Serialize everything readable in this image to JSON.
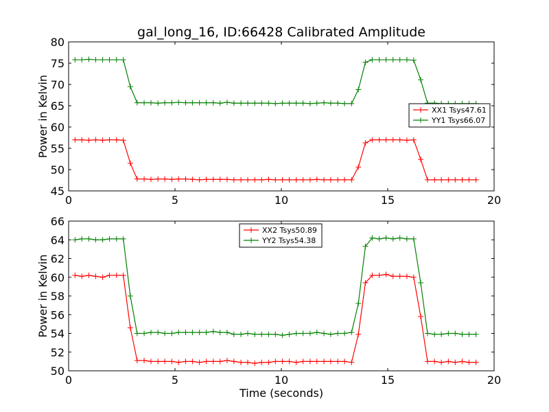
{
  "title": "gal_long_16, ID:66428 Calibrated Amplitude",
  "colors": {
    "xx": "#ff0000",
    "yy": "#008000"
  },
  "chart_data": [
    {
      "type": "line",
      "ylabel": "Power in Kelvin",
      "xlabel": "",
      "xlim": [
        0,
        20
      ],
      "ylim": [
        45,
        80
      ],
      "xticks": [
        0,
        5,
        10,
        15,
        20
      ],
      "yticks": [
        45,
        50,
        55,
        60,
        65,
        70,
        75,
        80
      ],
      "grid": false,
      "legend_position": "center-right",
      "x": [
        0.3,
        0.62,
        0.95,
        1.27,
        1.6,
        1.92,
        2.25,
        2.57,
        2.9,
        3.22,
        3.55,
        3.87,
        4.2,
        4.52,
        4.85,
        5.17,
        5.5,
        5.82,
        6.15,
        6.47,
        6.8,
        7.12,
        7.45,
        7.77,
        8.1,
        8.42,
        8.75,
        9.07,
        9.4,
        9.72,
        10.05,
        10.37,
        10.7,
        11.02,
        11.35,
        11.67,
        12.0,
        12.32,
        12.65,
        12.97,
        13.3,
        13.62,
        13.95,
        14.27,
        14.6,
        14.92,
        15.25,
        15.57,
        15.9,
        16.22,
        16.55,
        16.87,
        17.2,
        17.52,
        17.85,
        18.17,
        18.5,
        18.82,
        19.15
      ],
      "series": [
        {
          "name": "XX1 Tsys47.61",
          "color": "#ff0000",
          "values": [
            57.0,
            57.0,
            56.9,
            57.0,
            56.9,
            57.0,
            57.0,
            56.9,
            51.5,
            47.8,
            47.8,
            47.7,
            47.8,
            47.8,
            47.7,
            47.8,
            47.8,
            47.7,
            47.6,
            47.7,
            47.7,
            47.7,
            47.7,
            47.6,
            47.6,
            47.6,
            47.6,
            47.6,
            47.7,
            47.6,
            47.6,
            47.6,
            47.6,
            47.6,
            47.6,
            47.7,
            47.6,
            47.6,
            47.6,
            47.6,
            47.6,
            50.6,
            56.3,
            57.0,
            57.0,
            57.0,
            57.0,
            57.0,
            56.9,
            57.0,
            52.4,
            47.6,
            47.6,
            47.6,
            47.6,
            47.6,
            47.6,
            47.6,
            47.6
          ]
        },
        {
          "name": "YY1 Tsys66.07",
          "color": "#008000",
          "values": [
            75.8,
            75.8,
            75.9,
            75.8,
            75.8,
            75.8,
            75.8,
            75.8,
            69.5,
            65.7,
            65.7,
            65.7,
            65.6,
            65.7,
            65.7,
            65.8,
            65.7,
            65.7,
            65.7,
            65.7,
            65.7,
            65.6,
            65.8,
            65.6,
            65.6,
            65.6,
            65.6,
            65.6,
            65.6,
            65.5,
            65.6,
            65.6,
            65.6,
            65.6,
            65.5,
            65.6,
            65.7,
            65.6,
            65.6,
            65.5,
            65.5,
            68.8,
            75.2,
            75.8,
            75.8,
            75.8,
            75.8,
            75.8,
            75.8,
            75.7,
            71.1,
            65.6,
            65.6,
            65.5,
            65.5,
            65.5,
            65.5,
            65.5,
            65.5
          ]
        }
      ]
    },
    {
      "type": "line",
      "ylabel": "Power in Kelvin",
      "xlabel": "Time (seconds)",
      "xlim": [
        0,
        20
      ],
      "ylim": [
        50,
        66
      ],
      "xticks": [
        0,
        5,
        10,
        15,
        20
      ],
      "yticks": [
        50,
        52,
        54,
        56,
        58,
        60,
        62,
        64,
        66
      ],
      "grid": false,
      "legend_position": "upper-center",
      "x": [
        0.3,
        0.62,
        0.95,
        1.27,
        1.6,
        1.92,
        2.25,
        2.57,
        2.9,
        3.22,
        3.55,
        3.87,
        4.2,
        4.52,
        4.85,
        5.17,
        5.5,
        5.82,
        6.15,
        6.47,
        6.8,
        7.12,
        7.45,
        7.77,
        8.1,
        8.42,
        8.75,
        9.07,
        9.4,
        9.72,
        10.05,
        10.37,
        10.7,
        11.02,
        11.35,
        11.67,
        12.0,
        12.32,
        12.65,
        12.97,
        13.3,
        13.62,
        13.95,
        14.27,
        14.6,
        14.92,
        15.25,
        15.57,
        15.9,
        16.22,
        16.55,
        16.87,
        17.2,
        17.52,
        17.85,
        18.17,
        18.5,
        18.82,
        19.15
      ],
      "series": [
        {
          "name": "XX2 Tsys50.89",
          "color": "#ff0000",
          "values": [
            60.2,
            60.1,
            60.2,
            60.1,
            60.0,
            60.2,
            60.2,
            60.2,
            54.6,
            51.1,
            51.1,
            51.0,
            51.0,
            51.0,
            51.0,
            50.9,
            51.0,
            51.0,
            50.9,
            51.0,
            51.0,
            51.0,
            51.1,
            51.0,
            50.9,
            50.9,
            50.8,
            50.9,
            50.9,
            51.0,
            51.0,
            51.0,
            50.9,
            51.0,
            51.0,
            51.0,
            51.0,
            51.0,
            51.0,
            51.0,
            50.9,
            53.9,
            59.4,
            60.2,
            60.2,
            60.3,
            60.1,
            60.1,
            60.1,
            60.0,
            55.8,
            51.0,
            51.0,
            50.9,
            51.0,
            50.9,
            51.0,
            50.9,
            50.9
          ]
        },
        {
          "name": "YY2 Tsys54.38",
          "color": "#008000",
          "values": [
            64.0,
            64.1,
            64.1,
            64.0,
            64.0,
            64.1,
            64.1,
            64.1,
            58.0,
            54.0,
            54.0,
            54.1,
            54.1,
            54.0,
            54.0,
            54.1,
            54.1,
            54.1,
            54.1,
            54.1,
            54.2,
            54.1,
            54.1,
            53.9,
            53.9,
            54.0,
            53.9,
            53.9,
            53.9,
            53.9,
            53.8,
            53.9,
            54.0,
            54.0,
            54.0,
            54.1,
            54.0,
            53.9,
            54.0,
            54.0,
            54.1,
            57.2,
            63.3,
            64.2,
            64.1,
            64.2,
            64.1,
            64.2,
            64.1,
            64.1,
            59.4,
            54.0,
            53.9,
            53.9,
            54.0,
            54.0,
            53.9,
            53.9,
            53.9
          ]
        }
      ]
    }
  ]
}
